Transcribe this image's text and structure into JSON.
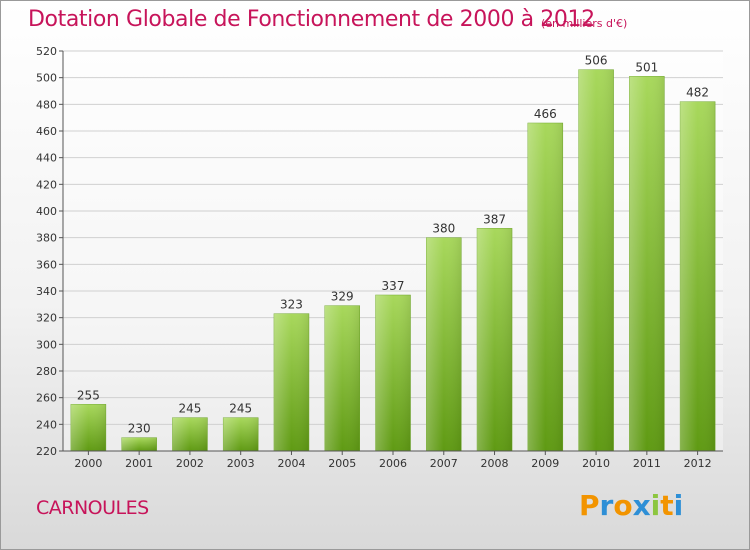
{
  "header": {
    "title": "Dotation Globale de Fonctionnement de 2000 à 2012",
    "unit": "(en milliers d'€)"
  },
  "footer": {
    "commune": "CARNOULES",
    "logo_letters": [
      "P",
      "r",
      "o",
      "x",
      "i",
      "t",
      "i"
    ]
  },
  "colors": {
    "accent": "#c7145a",
    "bar_top": "#a8d85c",
    "bar_bottom": "#5f9a13",
    "logo": [
      "#f29400",
      "#2e8fd6",
      "#f29400",
      "#2e8fd6",
      "#8cc63f",
      "#f29400",
      "#2e8fd6"
    ]
  },
  "chart_data": {
    "type": "bar",
    "title": "Dotation Globale de Fonctionnement de 2000 à 2012",
    "categories": [
      "2000",
      "2001",
      "2002",
      "2003",
      "2004",
      "2005",
      "2006",
      "2007",
      "2008",
      "2009",
      "2010",
      "2011",
      "2012"
    ],
    "values": [
      255,
      230,
      245,
      245,
      323,
      329,
      337,
      380,
      387,
      466,
      506,
      501,
      482
    ],
    "ylim": [
      220,
      520
    ],
    "yticks": [
      220,
      240,
      260,
      280,
      300,
      320,
      340,
      360,
      380,
      400,
      420,
      440,
      460,
      480,
      500,
      520
    ],
    "grid": true,
    "legend": "none"
  }
}
